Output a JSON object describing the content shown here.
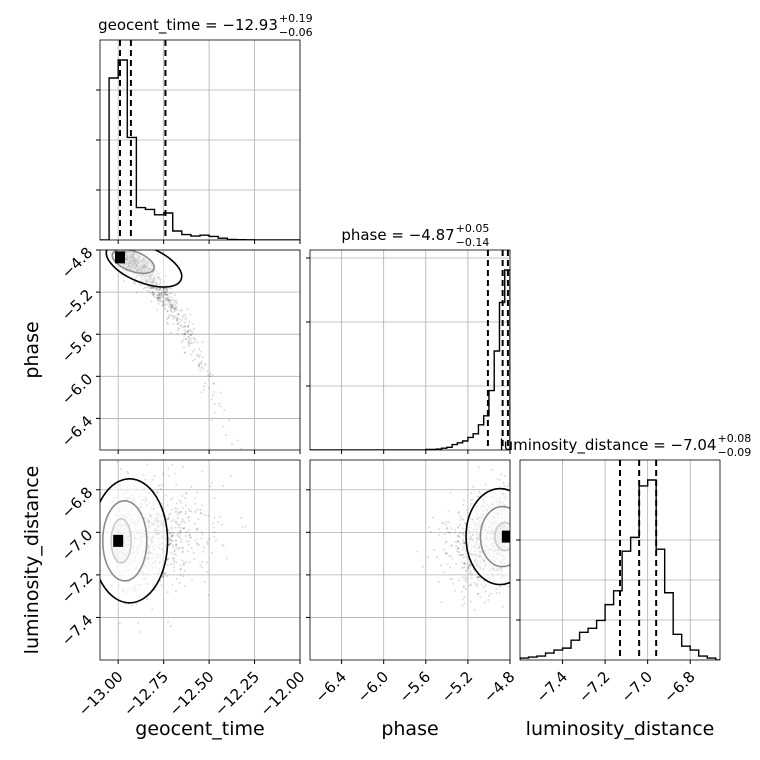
{
  "chart_data": {
    "type": "corner",
    "grid": true,
    "parameters": [
      {
        "name": "geocent_time",
        "range": [
          -13.1,
          -12.0
        ],
        "ticks": [
          -13.0,
          -12.75,
          -12.5,
          -12.25,
          -12.0
        ],
        "tick_labels": [
          "−13.00",
          "−12.75",
          "−12.50",
          "−12.25",
          "−12.00"
        ]
      },
      {
        "name": "phase",
        "range": [
          -6.7,
          -4.8
        ],
        "ticks": [
          -6.4,
          -6.0,
          -5.6,
          -5.2,
          -4.8
        ],
        "tick_labels": [
          "−6.4",
          "−6.0",
          "−5.6",
          "−5.2",
          "−4.8"
        ]
      },
      {
        "name": "luminosity_distance",
        "range": [
          -7.6,
          -6.66
        ],
        "ticks": [
          -7.4,
          -7.2,
          -7.0,
          -6.8
        ],
        "tick_labels": [
          "−7.4",
          "−7.2",
          "−7.0",
          "−6.8"
        ]
      }
    ],
    "marginal_titles": [
      {
        "param": "geocent_time",
        "main": "geocent_time = −12.93",
        "sup": "+0.19",
        "sub": "−0.06"
      },
      {
        "param": "phase",
        "main": "phase = −4.87",
        "sup": "+0.05",
        "sub": "−0.14"
      },
      {
        "param": "luminosity_distance",
        "main": "luminosity_distance = −7.04",
        "sup": "+0.08",
        "sub": "−0.09"
      }
    ],
    "quantiles": {
      "geocent_time": [
        -12.99,
        -12.93,
        -12.74
      ],
      "phase": [
        -5.01,
        -4.87,
        -4.82
      ],
      "luminosity_distance": [
        -7.13,
        -7.04,
        -6.96
      ]
    },
    "histograms": {
      "geocent_time": {
        "edges_start": -13.1,
        "bin_width": 0.05,
        "counts": [
          0,
          0.9,
          1.0,
          0.57,
          0.18,
          0.17,
          0.14,
          0.15,
          0.05,
          0.03,
          0.022,
          0.027,
          0.02,
          0.01,
          0.003,
          0.002,
          0.001,
          0.0,
          0.0,
          0.0,
          0.0,
          0.0
        ]
      },
      "phase": {
        "edges_start": -6.7,
        "bin_width": 0.05,
        "counts": [
          0,
          0,
          0,
          0,
          0,
          0,
          0,
          0,
          0,
          0,
          0,
          0,
          0,
          0,
          0,
          0,
          0,
          0,
          0,
          0,
          0,
          0,
          0.003,
          0.003,
          0.005,
          0.01,
          0.015,
          0.03,
          0.04,
          0.05,
          0.07,
          0.09,
          0.14,
          0.19,
          0.33,
          0.55,
          0.82,
          1.0
        ]
      },
      "luminosity_distance": {
        "edges_start": -7.6,
        "bin_width": 0.04,
        "counts": [
          0.01,
          0.015,
          0.02,
          0.035,
          0.05,
          0.06,
          0.1,
          0.14,
          0.16,
          0.2,
          0.28,
          0.35,
          0.55,
          0.62,
          0.88,
          0.91,
          0.56,
          0.34,
          0.13,
          0.07,
          0.05,
          0.02,
          0.01,
          0.0
        ]
      }
    },
    "hist2d": [
      {
        "x": "geocent_time",
        "y": "phase",
        "core": [
          -12.99,
          -4.87
        ],
        "levels": 2
      },
      {
        "x": "geocent_time",
        "y": "luminosity_distance",
        "core": [
          -13.0,
          -7.04
        ],
        "levels": 3
      },
      {
        "x": "phase",
        "y": "luminosity_distance",
        "core": [
          -4.83,
          -7.02
        ],
        "levels": 3
      }
    ]
  }
}
